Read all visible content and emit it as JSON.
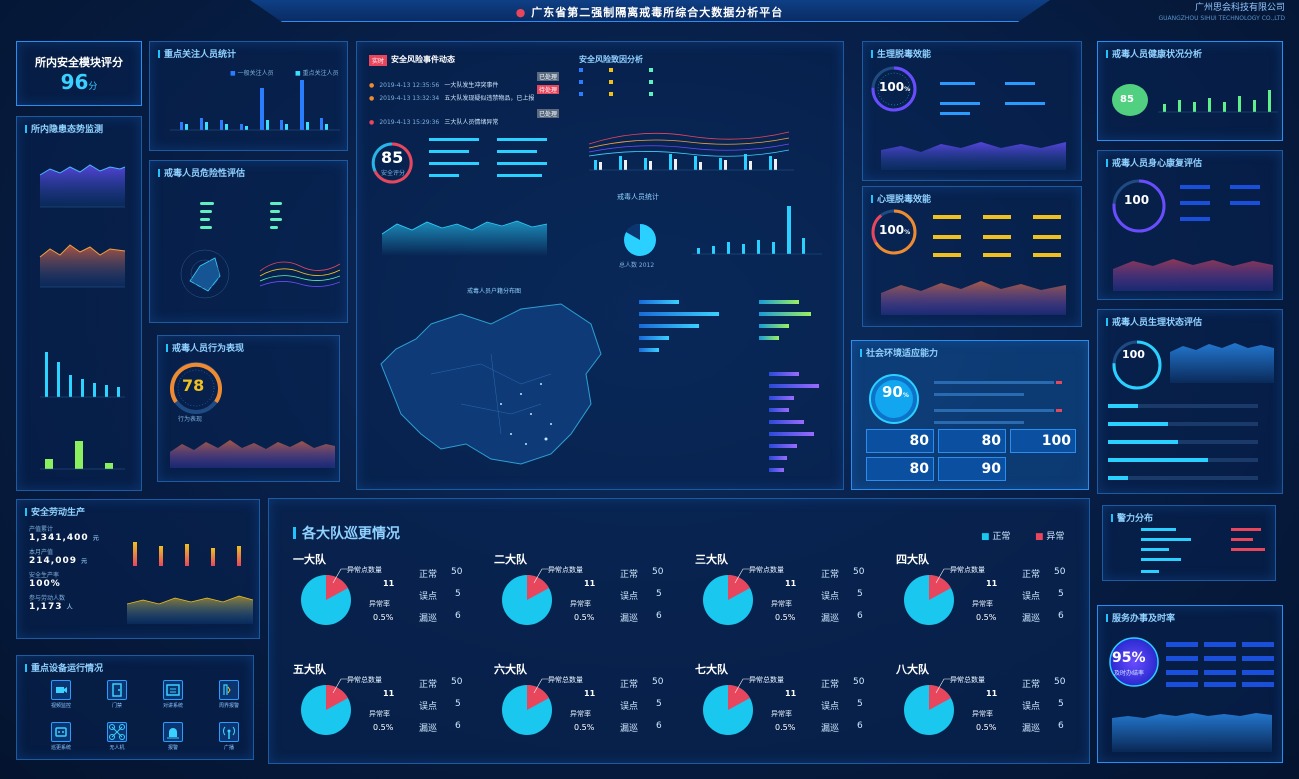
{
  "header": {
    "title": "广东省第二强制隔离戒毒所综合大数据分析平台",
    "company": "广州思会科技有限公司",
    "company_sub": "GUANGZHOU SIHUI TECHNOLOGY CO.,LTD"
  },
  "safety_score": {
    "title": "所内安全模块评分",
    "value": "96",
    "unit": "分"
  },
  "focus_stats": {
    "title": "重点关注人员统计",
    "legend": [
      "一般关注人员",
      "重点关注人员"
    ]
  },
  "hidden_danger": {
    "title": "所内隐患态势监测"
  },
  "risk_eval": {
    "title": "戒毒人员危险性评估"
  },
  "behavior": {
    "title": "戒毒人员行为表现",
    "gauge_value": "78",
    "gauge_label": "行为表现"
  },
  "events": {
    "badge": "实时",
    "title": "安全风险事件动态",
    "score": "85",
    "score_label": "安全评分",
    "items": [
      {
        "time": "2019-4-13 12:35:56",
        "text": "一大队发生冲突事件",
        "tag": "已处理"
      },
      {
        "time": "2019-4-13 13:32:34",
        "text": "五大队发现疑似违禁物品，已上报",
        "tag": "待处理"
      },
      {
        "time": "2019-4-13 15:29:36",
        "text": "三大队人员情绪异常",
        "tag": "已处理"
      }
    ]
  },
  "risk_analysis": {
    "title": "安全风险致因分析"
  },
  "map": {
    "title": "戒毒人员户籍分布图"
  },
  "personnel": {
    "title": "戒毒人员统计",
    "pie_label": "总人数 2012"
  },
  "physio": {
    "title": "生理脱毒效能",
    "value": "100",
    "unit": "%"
  },
  "psych": {
    "title": "心理脱毒效能",
    "value": "100",
    "unit": "%"
  },
  "social": {
    "title": "社会环境适应能力",
    "value": "90",
    "unit": "%",
    "scores": [
      "80",
      "80",
      "100",
      "80",
      "90"
    ]
  },
  "health": {
    "title": "戒毒人员健康状况分析",
    "value": "85"
  },
  "mind": {
    "title": "戒毒人员身心康复评估",
    "value": "100"
  },
  "physical": {
    "title": "戒毒人员生理状态评估",
    "value": "100"
  },
  "production": {
    "title": "安全劳动生产",
    "rows": [
      {
        "label": "产值累计",
        "value": "1,341,400",
        "unit": "元"
      },
      {
        "label": "本月产值",
        "value": "214,009",
        "unit": "元"
      },
      {
        "label": "安全生产率",
        "value": "100%",
        "unit": ""
      },
      {
        "label": "参与劳动人数",
        "value": "1,173",
        "unit": "人"
      }
    ]
  },
  "devices": {
    "title": "重点设备运行情况",
    "items": [
      "视频监控",
      "门禁",
      "对讲系统",
      "周界报警",
      "巡更系统",
      "无人机",
      "报警",
      "广播"
    ]
  },
  "patrol": {
    "title": "各大队巡更情况",
    "legend_normal": "正常",
    "legend_abnormal": "异常",
    "labels": {
      "abn_total": "异常总数量",
      "abn_rate": "异常率",
      "normal": "正常",
      "wrong": "误点",
      "miss": "漏巡"
    },
    "teams": [
      {
        "name": "一大队",
        "abn_label": "异常点数量",
        "abn": "11",
        "rate": "0.5%",
        "normal": "50",
        "wrong": "5",
        "miss": "6"
      },
      {
        "name": "二大队",
        "abn_label": "异常点数量",
        "abn": "11",
        "rate": "0.5%",
        "normal": "50",
        "wrong": "5",
        "miss": "6"
      },
      {
        "name": "三大队",
        "abn_label": "异常点数量",
        "abn": "11",
        "rate": "0.5%",
        "normal": "50",
        "wrong": "5",
        "miss": "6"
      },
      {
        "name": "四大队",
        "abn_label": "异常点数量",
        "abn": "11",
        "rate": "0.5%",
        "normal": "50",
        "wrong": "5",
        "miss": "6"
      },
      {
        "name": "五大队",
        "abn_label": "异常总数量",
        "abn": "11",
        "rate": "0.5%",
        "normal": "50",
        "wrong": "5",
        "miss": "6"
      },
      {
        "name": "六大队",
        "abn_label": "异常总数量",
        "abn": "11",
        "rate": "0.5%",
        "normal": "50",
        "wrong": "5",
        "miss": "6"
      },
      {
        "name": "七大队",
        "abn_label": "异常总数量",
        "abn": "11",
        "rate": "0.5%",
        "normal": "50",
        "wrong": "5",
        "miss": "6"
      },
      {
        "name": "八大队",
        "abn_label": "异常总数量",
        "abn": "11",
        "rate": "0.5%",
        "normal": "50",
        "wrong": "5",
        "miss": "6"
      }
    ]
  },
  "power": {
    "title": "警力分布"
  },
  "handling": {
    "title": "服务办事及时率",
    "value": "95%",
    "sub": "及时办结率"
  },
  "colors": {
    "accent": "#21c3ff",
    "normal": "#19c7ef",
    "abnormal": "#e8465d",
    "gold": "#f0c020"
  }
}
